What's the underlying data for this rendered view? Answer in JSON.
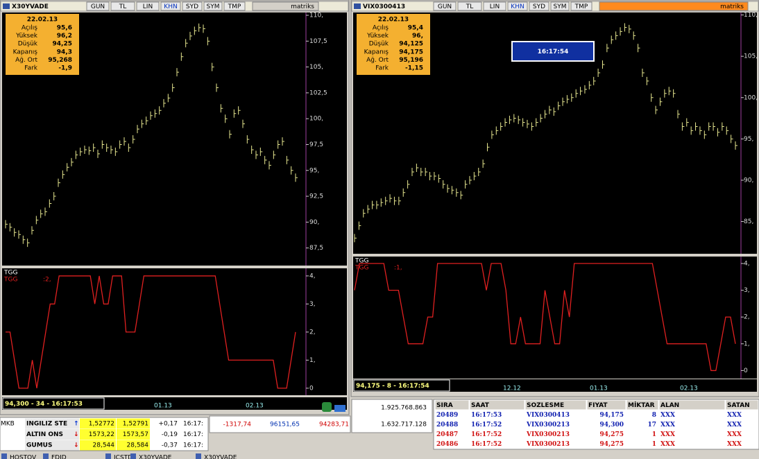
{
  "left_window": {
    "title": "X30YVADE",
    "toolbar": [
      "GUN",
      "TL",
      "LIN",
      "KHN",
      "SYD",
      "SYM",
      "TMP"
    ],
    "brand": "matriks",
    "info": {
      "date": "22.02.13",
      "rows": [
        [
          "Açılış",
          "95,6"
        ],
        [
          "Yüksek",
          "96,2"
        ],
        [
          "Düşük",
          "94,25"
        ],
        [
          "Kapanış",
          "94,3"
        ],
        [
          "Ağ. Ort",
          "95,268"
        ],
        [
          "Fark",
          "-1,9"
        ]
      ]
    },
    "price": {
      "values": [
        89.8,
        89.5,
        89.0,
        88.8,
        88.3,
        88.0,
        89.2,
        90.2,
        90.8,
        91.0,
        91.8,
        92.5,
        93.8,
        94.6,
        95.3,
        95.8,
        96.5,
        96.8,
        97.0,
        96.9,
        97.2,
        96.6,
        97.5,
        97.2,
        97.0,
        96.8,
        97.5,
        97.8,
        97.2,
        98.0,
        99.0,
        99.5,
        99.8,
        100.3,
        100.5,
        100.8,
        101.5,
        102.0,
        103.0,
        104.5,
        106.0,
        107.3,
        108.0,
        108.5,
        108.8,
        108.7,
        107.5,
        105.0,
        103.0,
        101.0,
        100.0,
        98.5,
        100.5,
        100.8,
        99.5,
        98.0,
        97.0,
        96.5,
        96.8,
        96.0,
        95.5,
        96.5,
        97.5,
        97.8,
        96.0,
        95.0,
        94.3
      ],
      "ylim": [
        85.8,
        110.27
      ],
      "yticks": [
        {
          "value": 87.5,
          "label": "87,5"
        },
        {
          "value": 90,
          "label": "90,"
        },
        {
          "value": 92.5,
          "label": "92,5"
        },
        {
          "value": 95,
          "label": "95,"
        },
        {
          "value": 97.5,
          "label": "97,5"
        },
        {
          "value": 100,
          "label": "100,"
        },
        {
          "value": 102.5,
          "label": "102,5"
        },
        {
          "value": 105,
          "label": "105,"
        },
        {
          "value": 107.5,
          "label": "107,5"
        },
        {
          "value": 110,
          "label": "110,"
        }
      ]
    },
    "indicator": {
      "name": "TGG",
      "label": "TGG",
      "value_label": ":2,",
      "values": [
        2,
        2,
        1,
        0,
        0,
        0,
        1,
        0,
        1,
        2,
        3,
        3,
        4,
        4,
        4,
        4,
        4,
        4,
        4,
        4,
        3,
        4,
        3,
        3,
        4,
        4,
        4,
        2,
        2,
        2,
        3,
        4,
        4,
        4,
        4,
        4,
        4,
        4,
        4,
        4,
        4,
        4,
        4,
        4,
        4,
        4,
        4,
        4,
        3,
        2,
        1,
        1,
        1,
        1,
        1,
        1,
        1,
        1,
        1,
        1,
        1,
        0,
        0,
        0,
        1,
        2
      ],
      "ylim": [
        -0.25,
        4.27
      ],
      "yticks": [
        0,
        {
          "value": 1,
          "label": "1,"
        },
        {
          "value": 2,
          "label": "2,"
        },
        {
          "value": 3,
          "label": "3,"
        },
        {
          "value": 4,
          "label": "4,"
        }
      ]
    },
    "x_labels": [
      "01.13",
      "02.13"
    ],
    "status": "94,300 - 34 - 16:17:53"
  },
  "right_window": {
    "title": "VIX0300413",
    "toolbar": [
      "GUN",
      "TL",
      "LIN",
      "KHN",
      "SYD",
      "SYM",
      "TMP"
    ],
    "brand": "matriks",
    "info": {
      "date": "22.02.13",
      "rows": [
        [
          "Açılış",
          "95,4"
        ],
        [
          "Yüksek",
          "96,"
        ],
        [
          "Düşük",
          "94,125"
        ],
        [
          "Kapanış",
          "94,175"
        ],
        [
          "Ağ. Ort",
          "95,196"
        ],
        [
          "Fark",
          "-1,15"
        ]
      ]
    },
    "clock": "16:17:54",
    "price": {
      "values": [
        83,
        84.5,
        86,
        86.5,
        87,
        87,
        87.3,
        87.5,
        87.8,
        87.5,
        87.5,
        88.5,
        89.5,
        91,
        91.5,
        91,
        91,
        90.5,
        90.5,
        90.2,
        89.5,
        89,
        88.8,
        88.5,
        88.2,
        89.5,
        90,
        90.5,
        91,
        92,
        94,
        95.5,
        96,
        96.5,
        97,
        97.3,
        97.5,
        97.3,
        97,
        96.8,
        96.5,
        97,
        97.5,
        98,
        98.5,
        98.3,
        99,
        99.5,
        99.8,
        100,
        100.5,
        100.8,
        101,
        101.5,
        102,
        103,
        104,
        106,
        107,
        107.5,
        108,
        108.5,
        108.3,
        107.5,
        106,
        103,
        102,
        100,
        98.5,
        99.5,
        100.5,
        100.8,
        100.5,
        98,
        96.5,
        97,
        96,
        96.5,
        96,
        95.5,
        96.5,
        96.5,
        95.8,
        96.5,
        96,
        95,
        94.2
      ],
      "ylim": [
        81.1,
        110.3
      ],
      "yticks": [
        {
          "value": 85,
          "label": "85,"
        },
        {
          "value": 90,
          "label": "90,"
        },
        {
          "value": 95,
          "label": "95,"
        },
        {
          "value": 100,
          "label": "100,"
        },
        {
          "value": 105,
          "label": "105,"
        },
        {
          "value": 110,
          "label": "110,"
        }
      ]
    },
    "indicator": {
      "name": "TGG",
      "label": "TGG",
      "value_label": ":1,",
      "values": [
        3,
        4,
        4,
        4,
        4,
        4,
        4,
        3,
        3,
        3,
        2,
        1,
        1,
        1,
        1,
        2,
        2,
        4,
        4,
        4,
        4,
        4,
        4,
        4,
        4,
        4,
        4,
        3,
        4,
        4,
        4,
        3,
        1,
        1,
        2,
        1,
        1,
        1,
        1,
        3,
        2,
        1,
        1,
        3,
        2,
        4,
        4,
        4,
        4,
        4,
        4,
        4,
        4,
        4,
        4,
        4,
        4,
        4,
        4,
        4,
        4,
        4,
        3,
        2,
        1,
        1,
        1,
        1,
        1,
        1,
        1,
        1,
        1,
        0,
        0,
        1,
        2,
        2,
        1
      ],
      "ylim": [
        -0.3,
        4.26
      ],
      "yticks": [
        0,
        {
          "value": 1,
          "label": "1,"
        },
        {
          "value": 2,
          "label": "2,"
        },
        {
          "value": 3,
          "label": "3,"
        },
        {
          "value": 4,
          "label": "4,"
        }
      ]
    },
    "x_labels": [
      "12.12",
      "01.13",
      "02.13"
    ],
    "status": "94,175 - 8 - 16:17:54"
  },
  "market": {
    "label": "MKB",
    "rows": [
      [
        "INGILIZ STE",
        "↑",
        "1,52772",
        "1,52791",
        "+0,17",
        "16:17:"
      ],
      [
        "ALTIN ONS",
        "↓",
        "1573,22",
        "1573,57",
        "-0,19",
        "16:17:"
      ],
      [
        "GUMUS",
        "↓",
        "28,544",
        "28,584",
        "-0,37",
        "16:17:"
      ]
    ]
  },
  "index": [
    "-1317,74",
    "96151,65",
    "94283,71"
  ],
  "totals": [
    "1.925.768.863",
    "1.632.717.128"
  ],
  "trades": {
    "header": [
      "SIRA",
      "SAAT",
      "SOZLESME",
      "FIYAT",
      "MİKTAR",
      "ALAN",
      "SATAN"
    ],
    "rows": [
      [
        "20489",
        "16:17:53",
        "VIX0300413",
        "94,175",
        "8",
        "XXX",
        "XXX"
      ],
      [
        "20488",
        "16:17:52",
        "VIX0300213",
        "94,300",
        "17",
        "XXX",
        "XXX"
      ],
      [
        "20487",
        "16:17:52",
        "VIX0300213",
        "94,275",
        "1",
        "XXX",
        "XXX"
      ],
      [
        "20486",
        "16:17:52",
        "VIX0300213",
        "94,275",
        "1",
        "XXX",
        "XXX"
      ]
    ]
  },
  "taskbar": [
    "HOSTOV",
    "FDJD",
    "ICSTD",
    "X30YVADE",
    "X30YVADE"
  ]
}
